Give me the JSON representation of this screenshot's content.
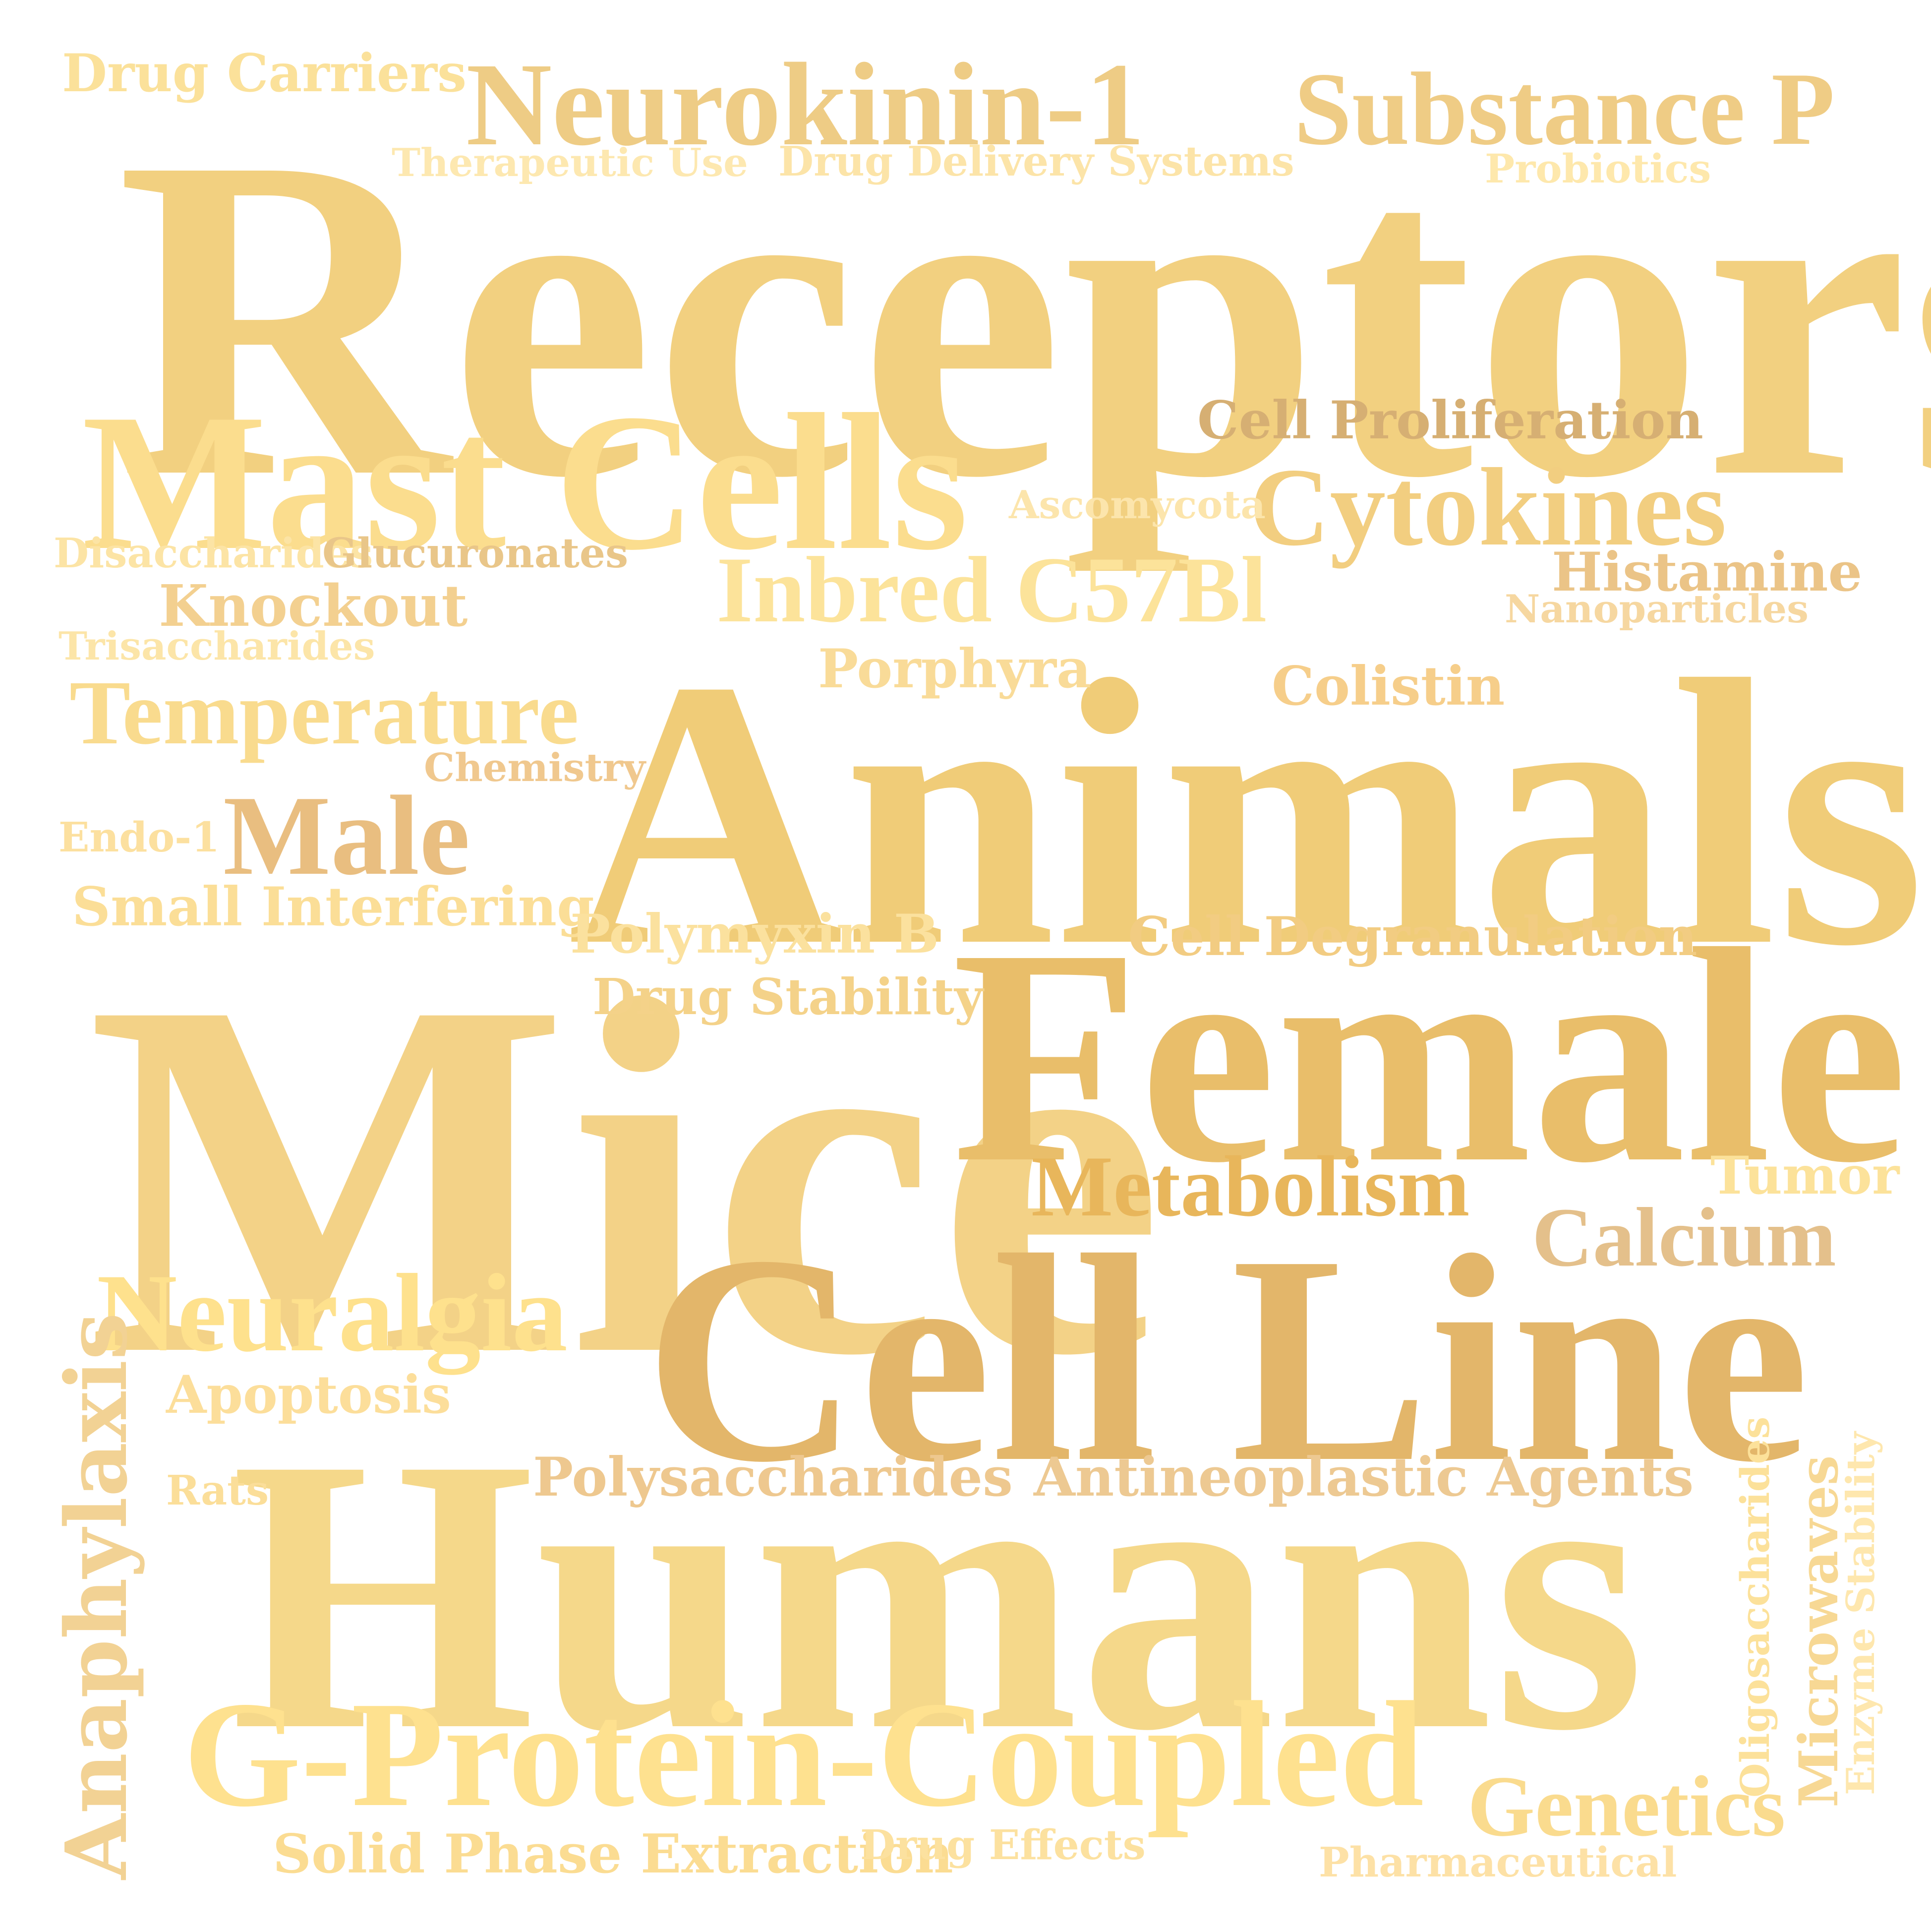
{
  "words": [
    {
      "id": "receptors",
      "text": "Receptors",
      "color": "#F2D080"
    },
    {
      "id": "animals",
      "text": "Animals",
      "color": "#F0CC78"
    },
    {
      "id": "mice",
      "text": "Mice",
      "color": "#F3D287"
    },
    {
      "id": "female",
      "text": "Female",
      "color": "#E9BE6A"
    },
    {
      "id": "cell-line",
      "text": "Cell Line",
      "color": "#E3B66A"
    },
    {
      "id": "humans",
      "text": "Humans",
      "color": "#F5D88A"
    },
    {
      "id": "mast-cells",
      "text": "Mast Cells",
      "color": "#FBDD8E"
    },
    {
      "id": "g-protein-coupled",
      "text": "G-Protein-Coupled",
      "color": "#FEE18F"
    },
    {
      "id": "neurokinin-1",
      "text": "Neurokinin-1",
      "color": "#EECC85"
    },
    {
      "id": "substance-p",
      "text": "Substance P",
      "color": "#EFCC85"
    },
    {
      "id": "cytokines",
      "text": "Cytokines",
      "color": "#F2CE80"
    },
    {
      "id": "inbred-c57bl",
      "text": "Inbred C57Bl",
      "color": "#FCE39A"
    },
    {
      "id": "temperature",
      "text": "Temperature",
      "color": "#F9DB8E"
    },
    {
      "id": "male",
      "text": "Male",
      "color": "#E9BE80"
    },
    {
      "id": "neuralgia",
      "text": "Neuralgia",
      "color": "#FEE18D"
    },
    {
      "id": "anaphylaxis",
      "text": "Anaphylaxis",
      "color": "#F2D294"
    },
    {
      "id": "metabolism",
      "text": "Metabolism",
      "color": "#E8B65B"
    },
    {
      "id": "calcium",
      "text": "Calcium",
      "color": "#E4C08B"
    },
    {
      "id": "genetics",
      "text": "Genetics",
      "color": "#FADB8E"
    },
    {
      "id": "drug-carriers",
      "text": "Drug Carriers",
      "color": "#FBE19A"
    },
    {
      "id": "therapeutic-use",
      "text": "Therapeutic Use",
      "color": "#FDE8B0"
    },
    {
      "id": "drug-delivery-systems",
      "text": "Drug Delivery Systems",
      "color": "#FCE4A8"
    },
    {
      "id": "probiotics",
      "text": "Probiotics",
      "color": "#FEE8AC"
    },
    {
      "id": "cell-proliferation",
      "text": "Cell Proliferation",
      "color": "#D6AF73"
    },
    {
      "id": "ascomycota",
      "text": "Ascomycota",
      "color": "#FCE5AC"
    },
    {
      "id": "disaccharides",
      "text": "Disaccharides",
      "color": "#FCE4A5"
    },
    {
      "id": "glucuronates",
      "text": "Glucuronates",
      "color": "#E9C689"
    },
    {
      "id": "histamine",
      "text": "Histamine",
      "color": "#EBC487"
    },
    {
      "id": "nanoparticles",
      "text": "Nanoparticles",
      "color": "#F6D7A0"
    },
    {
      "id": "knockout",
      "text": "Knockout",
      "color": "#F3D090"
    },
    {
      "id": "trisaccharides",
      "text": "Trisaccharides",
      "color": "#FCE5A8"
    },
    {
      "id": "porphyra",
      "text": "Porphyra",
      "color": "#F9DB98"
    },
    {
      "id": "colistin",
      "text": "Colistin",
      "color": "#F6CE8A"
    },
    {
      "id": "chemistry",
      "text": "Chemistry",
      "color": "#F0C88E"
    },
    {
      "id": "endo-1",
      "text": "Endo-1",
      "color": "#FCE09F"
    },
    {
      "id": "small-interfering",
      "text": "Small Interfering",
      "color": "#FBDE97"
    },
    {
      "id": "polymyxin-b",
      "text": "Polymyxin B",
      "color": "#FBE19E"
    },
    {
      "id": "cell-degranulation",
      "text": "Cell Degranulation",
      "color": "#F2CC82"
    },
    {
      "id": "drug-stability",
      "text": "Drug Stability",
      "color": "#F4D289"
    },
    {
      "id": "tumor",
      "text": "Tumor",
      "color": "#FCE29A"
    },
    {
      "id": "apoptosis",
      "text": "Apoptosis",
      "color": "#FCDE9A"
    },
    {
      "id": "polysaccharides",
      "text": "Polysaccharides",
      "color": "#EEC88F"
    },
    {
      "id": "antineoplastic-agents",
      "text": "Antineoplastic Agents",
      "color": "#EDC992"
    },
    {
      "id": "rats",
      "text": "Rats",
      "color": "#FBDE99"
    },
    {
      "id": "oligosaccharides",
      "text": "Oligosaccharides",
      "color": "#FCE19A"
    },
    {
      "id": "microwaves",
      "text": "Microwaves",
      "color": "#F7D894"
    },
    {
      "id": "enzyme-stability",
      "text": "Enzyme Stability",
      "color": "#FEE7AE"
    },
    {
      "id": "solid-phase-extraction",
      "text": "Solid Phase Extraction",
      "color": "#FBDC92"
    },
    {
      "id": "drug-effects",
      "text": "Drug Effects",
      "color": "#FCE19F"
    },
    {
      "id": "pharmaceutical",
      "text": "Pharmaceutical",
      "color": "#FDE1A6"
    }
  ]
}
